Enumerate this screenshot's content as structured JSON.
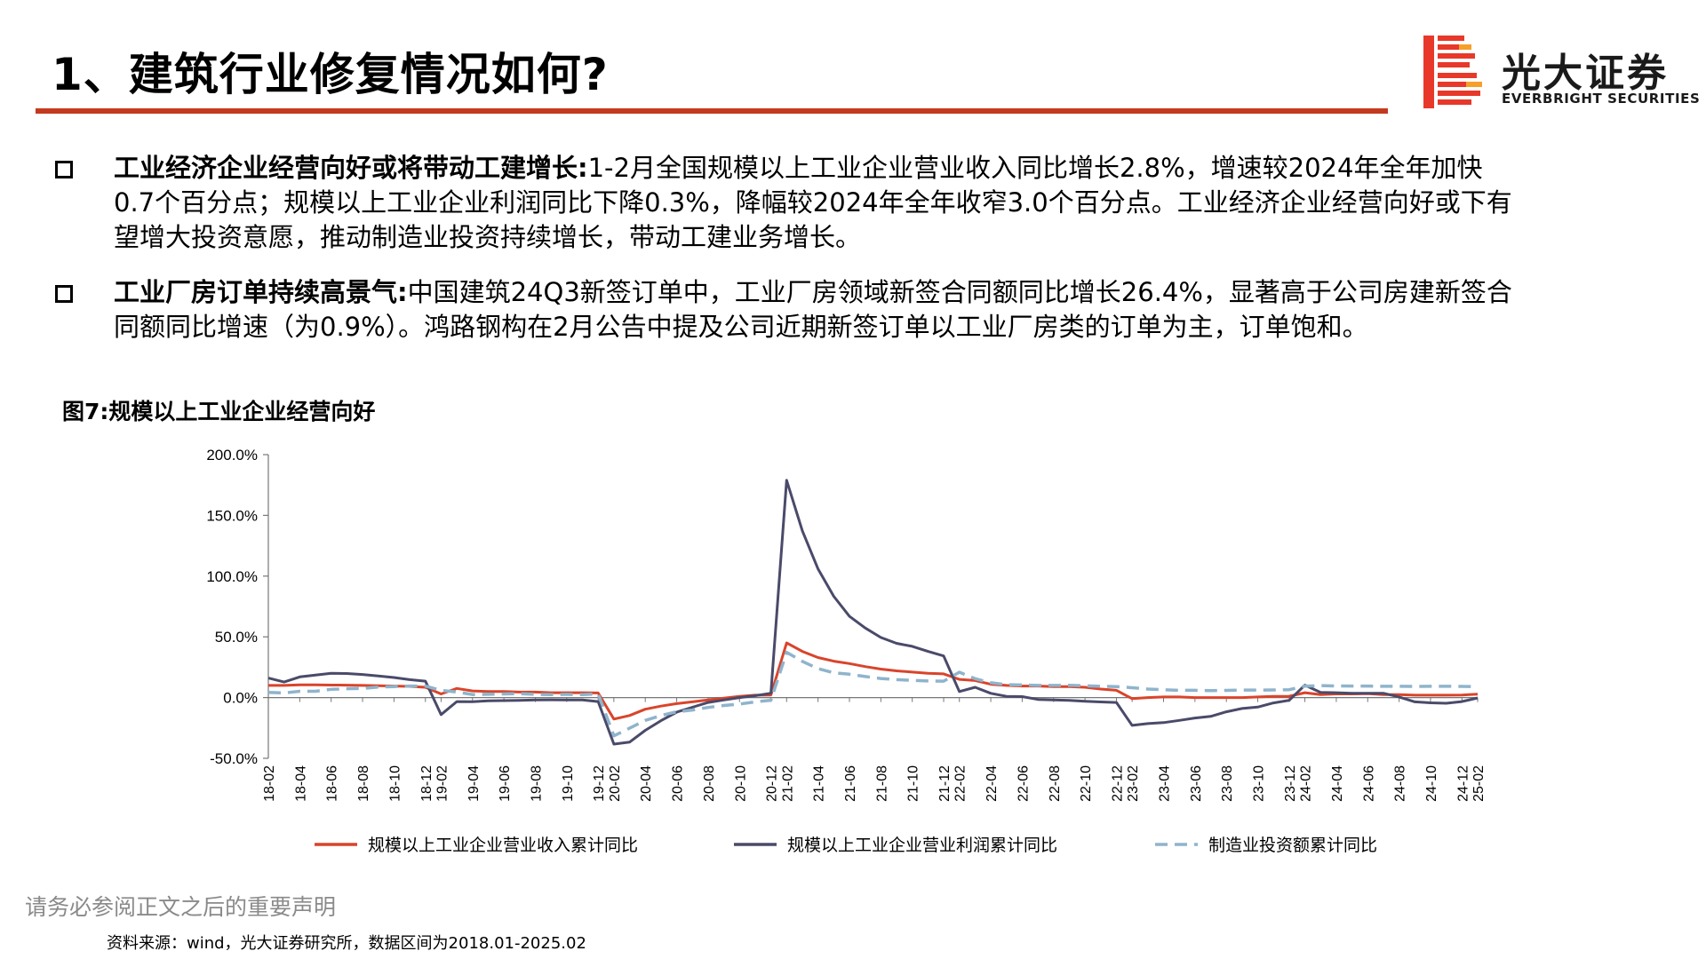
{
  "header": {
    "title": "1、建筑行业修复情况如何?",
    "logo": {
      "name_cn": "光大证券",
      "name_en": "EVERBRIGHT SECURITIES",
      "mark_icon": "everbright-b-logo",
      "mark_color": "#e8382a"
    },
    "rule_color": "#c33a1f"
  },
  "bullets": [
    {
      "icon": "square-bullet-icon",
      "head": "工业经济企业经营向好或将带动工建增长:",
      "body": "1-2月全国规模以上工业企业营业收入同比增长2.8%，增速较2024年全年加快0.7个百分点；规模以上工业企业利润同比下降0.3%，降幅较2024年全年收窄3.0个百分点。工业经济企业经营向好或下有望增大投资意愿，推动制造业投资持续增长，带动工建业务增长。"
    },
    {
      "icon": "square-bullet-icon",
      "head": "工业厂房订单持续高景气:",
      "body": "中国建筑24Q3新签订单中，工业厂房领域新签合同额同比增长26.4%，显著高于公司房建新签合同额同比增速（为0.9%）。鸿路钢构在2月公告中提及公司近期新签订单以工业厂房类的订单为主，订单饱和。"
    }
  ],
  "figure_title": "图7:规模以上工业企业经营向好",
  "chart_data": {
    "type": "line",
    "title": "",
    "xlabel": "",
    "ylabel": "",
    "ylim": [
      -50,
      200
    ],
    "yticks": [
      -50,
      0,
      50,
      100,
      150,
      200
    ],
    "ytick_labels": [
      "-50.0%",
      "0.0%",
      "50.0%",
      "100.0%",
      "150.0%",
      "200.0%"
    ],
    "grid": false,
    "legend_position": "bottom",
    "x": [
      "18-02",
      "18-03",
      "18-04",
      "18-05",
      "18-06",
      "18-07",
      "18-08",
      "18-09",
      "18-10",
      "18-11",
      "18-12",
      "19-02",
      "19-03",
      "19-04",
      "19-05",
      "19-06",
      "19-07",
      "19-08",
      "19-09",
      "19-10",
      "19-11",
      "19-12",
      "20-02",
      "20-03",
      "20-04",
      "20-05",
      "20-06",
      "20-07",
      "20-08",
      "20-09",
      "20-10",
      "20-11",
      "20-12",
      "21-02",
      "21-03",
      "21-04",
      "21-05",
      "21-06",
      "21-07",
      "21-08",
      "21-09",
      "21-10",
      "21-11",
      "21-12",
      "22-02",
      "22-03",
      "22-04",
      "22-05",
      "22-06",
      "22-07",
      "22-08",
      "22-09",
      "22-10",
      "22-11",
      "22-12",
      "23-02",
      "23-03",
      "23-04",
      "23-05",
      "23-06",
      "23-07",
      "23-08",
      "23-09",
      "23-10",
      "23-11",
      "23-12",
      "24-02",
      "24-03",
      "24-04",
      "24-05",
      "24-06",
      "24-07",
      "24-08",
      "24-09",
      "24-10",
      "24-11",
      "24-12",
      "25-02"
    ],
    "x_tick_labels": [
      "18-02",
      "18-04",
      "18-06",
      "18-08",
      "18-10",
      "18-12",
      "19-02",
      "19-04",
      "19-06",
      "19-08",
      "19-10",
      "19-12",
      "20-02",
      "20-04",
      "20-06",
      "20-08",
      "20-10",
      "20-12",
      "21-02",
      "21-04",
      "21-06",
      "21-08",
      "21-10",
      "21-12",
      "22-02",
      "22-04",
      "22-06",
      "22-08",
      "22-10",
      "22-12",
      "23-02",
      "23-04",
      "23-06",
      "23-08",
      "23-10",
      "23-12",
      "24-02",
      "24-04",
      "24-06",
      "24-08",
      "24-10",
      "24-12",
      "25-02"
    ],
    "series": [
      {
        "name": "规模以上工业企业营业收入累计同比",
        "color": "#d9442b",
        "style": "solid",
        "values": [
          10,
          10,
          10.5,
          10.5,
          10.3,
          10.2,
          10,
          9.8,
          9.5,
          9.2,
          8.5,
          3,
          7.5,
          5.5,
          5,
          5,
          4.5,
          4.5,
          4,
          4,
          4,
          3.8,
          -17.7,
          -14.8,
          -9.6,
          -7,
          -5,
          -3.5,
          -2,
          -0.5,
          1,
          2,
          2.1,
          45,
          38,
          33,
          30,
          28,
          25.5,
          23.5,
          22,
          21,
          20,
          19.5,
          15,
          14,
          11,
          10,
          9.5,
          9.5,
          9,
          9,
          8.5,
          7,
          6,
          -0.9,
          0,
          0.5,
          0.5,
          0,
          0,
          0,
          0,
          0.5,
          1,
          1.1,
          4,
          2.5,
          3,
          3,
          3.3,
          2.5,
          2.5,
          2,
          2,
          2,
          2.1,
          2.8
        ]
      },
      {
        "name": "规模以上工业企业营业利润累计同比",
        "color": "#4a4a6a",
        "style": "solid",
        "values": [
          16.1,
          12.8,
          17,
          18.5,
          20,
          19.8,
          19,
          17.8,
          16.5,
          14.8,
          13.5,
          -14,
          -3.3,
          -3.4,
          -2.7,
          -2.5,
          -2.3,
          -1.9,
          -1.8,
          -2,
          -2,
          -3.3,
          -38.3,
          -36.7,
          -27,
          -19,
          -12,
          -8,
          -4,
          -2,
          0,
          1.5,
          3.6,
          178.9,
          137.3,
          106,
          83.4,
          66.9,
          57.3,
          49.5,
          44.7,
          42.2,
          38,
          34.3,
          5,
          8.5,
          3.5,
          1,
          0.8,
          -1.5,
          -2,
          -2.3,
          -3,
          -3.6,
          -4,
          -22.9,
          -21.4,
          -20.6,
          -18.8,
          -16.8,
          -15.5,
          -11.7,
          -9,
          -7.8,
          -4.4,
          -2.3,
          10.2,
          4.3,
          4,
          3.5,
          3.5,
          3.6,
          0.5,
          -3.5,
          -4.3,
          -4.7,
          -3.3,
          -0.3
        ]
      },
      {
        "name": "制造业投资额累计同比",
        "color": "#8fb4cc",
        "style": "dashed",
        "values": [
          4.3,
          3.8,
          5.2,
          5.2,
          6.8,
          7.3,
          7.5,
          8.7,
          9.1,
          9.5,
          9.5,
          5.9,
          4.6,
          2.5,
          2.7,
          3,
          3.3,
          2.6,
          2.5,
          2.6,
          2.5,
          3.1,
          -31.5,
          -25.2,
          -18.8,
          -14.8,
          -11.7,
          -10.2,
          -8.1,
          -6.5,
          -5.3,
          -3.5,
          -2.2,
          37.3,
          29.8,
          23.8,
          20.4,
          19.2,
          17.3,
          15.7,
          14.8,
          14.2,
          13.7,
          13.5,
          20.9,
          15.6,
          12.2,
          10.6,
          10.4,
          10,
          10,
          10.1,
          9.7,
          9.3,
          9.1,
          8.1,
          7,
          6.4,
          6,
          6,
          5.7,
          5.9,
          6.2,
          6.2,
          6.3,
          6.5,
          9.4,
          9.9,
          9.6,
          9.5,
          9.5,
          9.3,
          9.3,
          9.2,
          9.3,
          9.3,
          9.2,
          9
        ]
      }
    ]
  },
  "disclaimer": "请务必参阅正文之后的重要声明",
  "source_note": "资料来源：wind，光大证券研究所，数据区间为2018.01-2025.02"
}
